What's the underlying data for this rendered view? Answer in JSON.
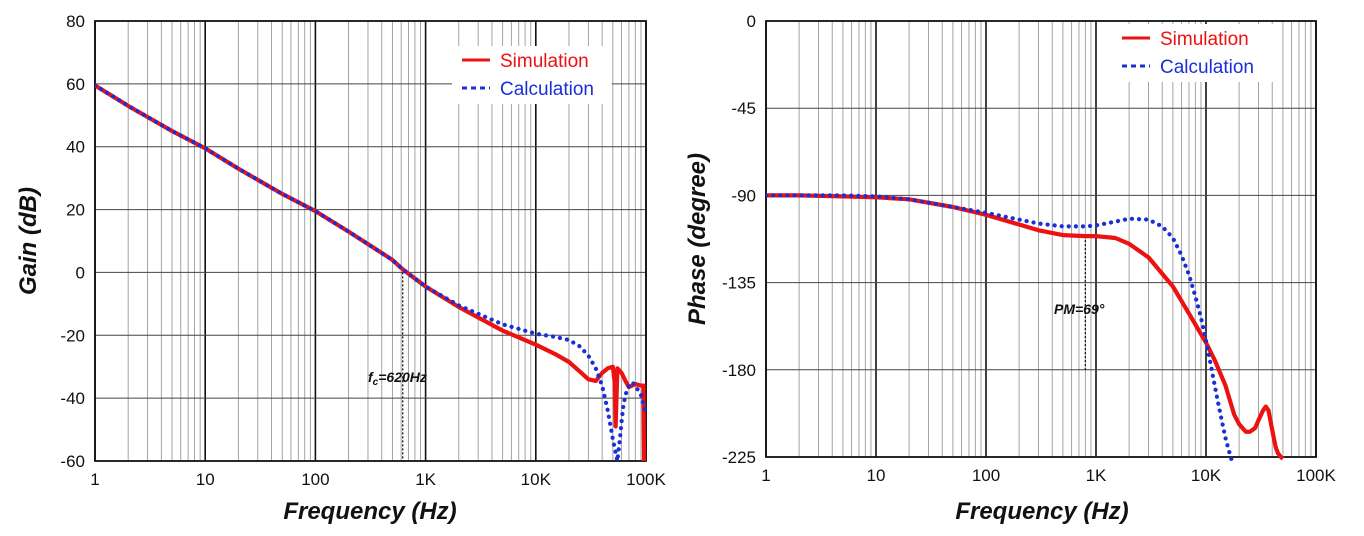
{
  "chart_data": [
    {
      "type": "line",
      "title": "",
      "xlabel": "Frequency (Hz)",
      "ylabel": "Gain (dB)",
      "xscale": "log",
      "xlim": [
        1,
        100000
      ],
      "ylim": [
        -60,
        80
      ],
      "xticks": [
        1,
        10,
        100,
        1000,
        10000,
        100000
      ],
      "xtick_labels": [
        "1",
        "10",
        "100",
        "1K",
        "10K",
        "100K"
      ],
      "yticks": [
        80,
        60,
        40,
        20,
        0,
        -20,
        -40,
        -60
      ],
      "ytick_labels": [
        "80",
        "60",
        "40",
        "20",
        "0",
        "-20",
        "-40",
        "-60"
      ],
      "grid": true,
      "legend_position": "top-right",
      "annotation": {
        "text": "=620Hz",
        "prefix": "f",
        "sub": "c",
        "x": 620
      },
      "series": [
        {
          "name": "Simulation",
          "color": "#ee1111",
          "style": "solid",
          "x": [
            1,
            2,
            5,
            10,
            20,
            50,
            100,
            200,
            500,
            620,
            1000,
            2000,
            5000,
            10000,
            15000,
            20000,
            25000,
            30000,
            35000,
            40000,
            45000,
            50000,
            52000,
            53000,
            55000,
            60000,
            65000,
            70000,
            80000,
            90000,
            95000,
            96000
          ],
          "values": [
            59.5,
            53,
            45,
            39.5,
            33,
            25,
            19.5,
            13,
            4,
            1,
            -4.5,
            -11,
            -18.5,
            -23,
            -26,
            -28.5,
            -31.5,
            -34,
            -34.5,
            -32,
            -30.5,
            -30,
            -35,
            -49,
            -30.5,
            -32,
            -34.5,
            -36.5,
            -35.5,
            -36,
            -36,
            -60
          ]
        },
        {
          "name": "Calculation",
          "color": "#1a2fd6",
          "style": "dotted",
          "x": [
            1,
            2,
            5,
            10,
            20,
            50,
            100,
            200,
            500,
            620,
            1000,
            2000,
            5000,
            10000,
            15000,
            20000,
            25000,
            30000,
            35000,
            40000,
            45000,
            50000,
            55000,
            58000,
            60000,
            62000,
            65000,
            70000,
            75000,
            80000,
            90000,
            100000
          ],
          "values": [
            59.5,
            53,
            45,
            39.5,
            33,
            25,
            19.5,
            13,
            4,
            1,
            -4.5,
            -10.5,
            -16.5,
            -19.5,
            -20.5,
            -21.5,
            -23.5,
            -26.5,
            -30.5,
            -36,
            -44,
            -53,
            -60,
            -53,
            -47.5,
            -43,
            -39,
            -36,
            -35,
            -36,
            -39,
            -45
          ]
        }
      ]
    },
    {
      "type": "line",
      "title": "",
      "xlabel": "Frequency (Hz)",
      "ylabel": "Phase (degree)",
      "xscale": "log",
      "xlim": [
        1,
        100000
      ],
      "ylim": [
        -225,
        0
      ],
      "xticks": [
        1,
        10,
        100,
        1000,
        10000,
        100000
      ],
      "xtick_labels": [
        "1",
        "10",
        "100",
        "1K",
        "10K",
        "100K"
      ],
      "yticks": [
        0,
        -45,
        -90,
        -135,
        -180,
        -225
      ],
      "ytick_labels": [
        "0",
        "-45",
        "-90",
        "-135",
        "-180",
        "-225"
      ],
      "grid": true,
      "legend_position": "top-right",
      "annotation": {
        "text": "PM=69°",
        "x": 800
      },
      "series": [
        {
          "name": "Simulation",
          "color": "#ee1111",
          "style": "solid",
          "x": [
            1,
            2,
            5,
            10,
            20,
            50,
            100,
            200,
            300,
            500,
            800,
            1000,
            1500,
            2000,
            3000,
            5000,
            7000,
            10000,
            12000,
            15000,
            18000,
            20000,
            23000,
            25000,
            28000,
            30000,
            33000,
            35000,
            37000,
            40000,
            43000,
            45000,
            48000,
            50000
          ],
          "values": [
            -90,
            -90,
            -90.5,
            -91,
            -92,
            -96,
            -100,
            -105,
            -108,
            -110.5,
            -111,
            -111,
            -112,
            -115,
            -122,
            -137,
            -151,
            -166,
            -175,
            -188,
            -203,
            -208,
            -212,
            -212,
            -210,
            -206,
            -201,
            -199,
            -201,
            -211,
            -220,
            -223,
            -225,
            -226
          ]
        },
        {
          "name": "Calculation",
          "color": "#1a2fd6",
          "style": "dotted",
          "x": [
            1,
            2,
            5,
            10,
            20,
            50,
            100,
            200,
            300,
            500,
            800,
            1000,
            1500,
            2000,
            3000,
            4000,
            5000,
            6000,
            7000,
            8000,
            9000,
            10000,
            11000,
            12000,
            13000,
            14000,
            15000,
            16000,
            17000
          ],
          "values": [
            -90,
            -90,
            -90,
            -90.5,
            -92,
            -96,
            -99,
            -102.5,
            -104.5,
            -106,
            -106,
            -105.5,
            -103.5,
            -102,
            -102.5,
            -106,
            -112,
            -121,
            -131,
            -142,
            -153,
            -165,
            -177,
            -188,
            -198,
            -207,
            -215,
            -221,
            -226
          ]
        }
      ]
    }
  ]
}
